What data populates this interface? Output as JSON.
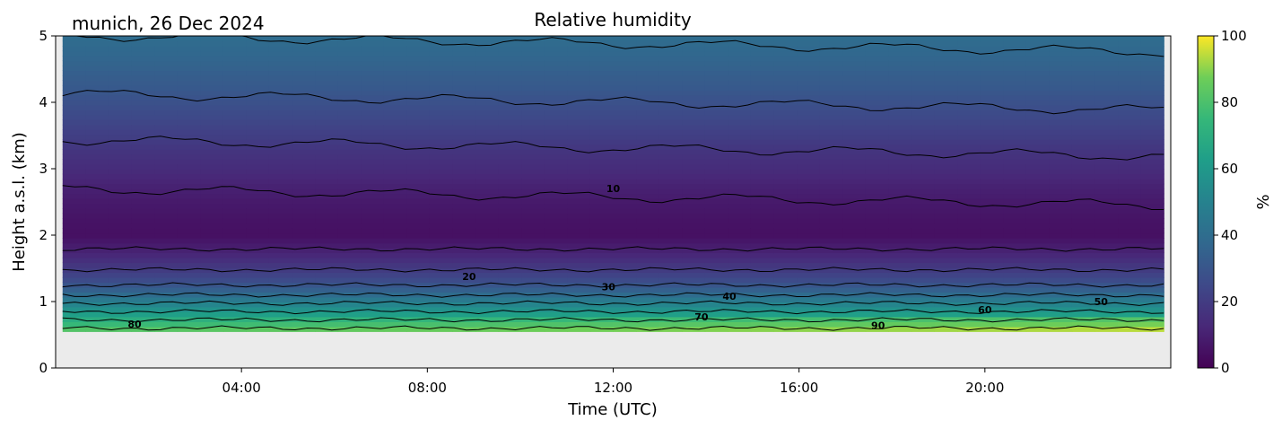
{
  "chart_data": {
    "type": "heatmap",
    "title": "Relative humidity",
    "location_date": "munich, 26 Dec 2024",
    "xlabel": "Time (UTC)",
    "ylabel": "Height a.s.l. (km)",
    "xlim_hours": [
      0,
      24
    ],
    "ylim_km": [
      0,
      5
    ],
    "x_tick_labels": [
      "04:00",
      "08:00",
      "12:00",
      "16:00",
      "20:00"
    ],
    "x_tick_hours": [
      4,
      8,
      12,
      16,
      20
    ],
    "y_ticks": [
      0,
      1,
      2,
      3,
      4,
      5
    ],
    "colorbar": {
      "label": "%",
      "range": [
        0,
        100
      ],
      "ticks": [
        0,
        20,
        40,
        60,
        80,
        100
      ],
      "colormap": "viridis"
    },
    "data_start_hour": 0.15,
    "data_end_hour": 23.85,
    "data_bottom_km": 0.55,
    "missing_color": "#ebebeb",
    "profile": {
      "height_km": [
        0.55,
        0.6,
        0.7,
        0.8,
        0.9,
        1.0,
        1.1,
        1.2,
        1.3,
        1.45,
        1.6,
        1.75,
        2.0,
        2.25,
        2.5,
        2.7,
        3.0,
        3.25,
        3.5,
        3.85,
        4.2,
        4.6,
        5.0
      ],
      "rh_percent": [
        85,
        80,
        72,
        64,
        56,
        48,
        40,
        33,
        27,
        21,
        16,
        11,
        5,
        6,
        8,
        10,
        14,
        17,
        21,
        26,
        31,
        36,
        40
      ]
    },
    "contour_levels": [
      10,
      20,
      30,
      40,
      50,
      60,
      70,
      80,
      90
    ],
    "contour_labels": [
      {
        "text": "10",
        "hour": 12.0,
        "km": 2.7
      },
      {
        "text": "20",
        "hour": 8.9,
        "km": 1.38
      },
      {
        "text": "30",
        "hour": 11.9,
        "km": 1.22
      },
      {
        "text": "40",
        "hour": 14.5,
        "km": 1.08
      },
      {
        "text": "50",
        "hour": 22.5,
        "km": 1.0
      },
      {
        "text": "60",
        "hour": 20.0,
        "km": 0.88
      },
      {
        "text": "70",
        "hour": 13.9,
        "km": 0.77
      },
      {
        "text": "80",
        "hour": 1.7,
        "km": 0.66
      },
      {
        "text": "90",
        "hour": 17.7,
        "km": 0.64
      }
    ]
  }
}
